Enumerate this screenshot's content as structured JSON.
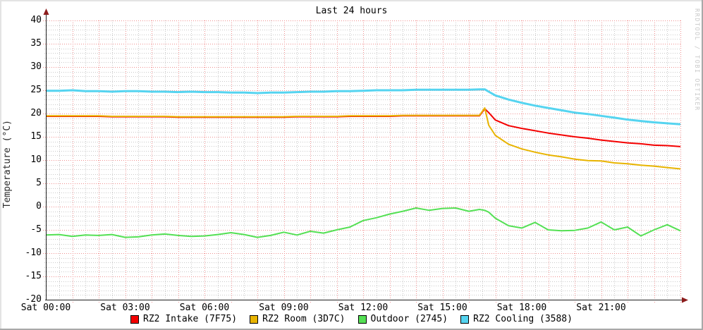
{
  "title": "Last 24 hours",
  "y_axis_label": "Temperature (°C)",
  "watermark": "RRDTOOL / TOBI OETIKER",
  "colors": {
    "background": "#ffffff",
    "axis": "#1f1f1f",
    "arrow": "#8c1c1c",
    "text": "#000000",
    "watermark_text": "#c9c9c9",
    "frame_light": "#e3e3e3",
    "frame_dark": "#a9a9a9"
  },
  "legend": [
    {
      "label": "RZ2 Intake (7F75)",
      "color": "#f40000",
      "name": "rz2-intake"
    },
    {
      "label": "RZ2 Room (3D7C)",
      "color": "#e8b400",
      "name": "rz2-room"
    },
    {
      "label": "Outdoor (2745)",
      "color": "#54e054",
      "name": "outdoor"
    },
    {
      "label": "RZ2 Cooling (3588)",
      "color": "#55d4f0",
      "name": "rz2-cooling"
    }
  ],
  "chart_data": {
    "type": "line",
    "title": "Last 24 hours",
    "xlabel": "",
    "ylabel": "Temperature (°C)",
    "x_unit": "hours since Sat 00:00",
    "xlim": [
      0,
      24
    ],
    "ylim": [
      -20,
      40
    ],
    "grid": {
      "major_color": "#f08f8f",
      "minor_color": "#c9c9c9",
      "x_major_step_hours": 1,
      "x_minor_step_hours": 0.5,
      "y_major_step": 5,
      "y_minor_step": 1,
      "style": "dotted"
    },
    "legend_position": "bottom-center",
    "x_ticks": [
      {
        "hour": 0,
        "label": "Sat 00:00"
      },
      {
        "hour": 3,
        "label": "Sat 03:00"
      },
      {
        "hour": 6,
        "label": "Sat 06:00"
      },
      {
        "hour": 9,
        "label": "Sat 09:00"
      },
      {
        "hour": 12,
        "label": "Sat 12:00"
      },
      {
        "hour": 15,
        "label": "Sat 15:00"
      },
      {
        "hour": 18,
        "label": "Sat 18:00"
      },
      {
        "hour": 21,
        "label": "Sat 21:00"
      }
    ],
    "y_ticks": [
      40,
      35,
      30,
      25,
      20,
      15,
      10,
      5,
      0,
      -5,
      -10,
      -15,
      -20
    ],
    "x": [
      0,
      0.5,
      1,
      1.5,
      2,
      2.5,
      3,
      3.5,
      4,
      4.5,
      5,
      5.5,
      6,
      6.5,
      7,
      7.5,
      8,
      8.5,
      9,
      9.5,
      10,
      10.5,
      11,
      11.5,
      12,
      12.5,
      13,
      13.5,
      14,
      14.5,
      15,
      15.5,
      16,
      16.4,
      16.6,
      16.75,
      17,
      17.5,
      18,
      18.5,
      19,
      19.5,
      20,
      20.5,
      21,
      21.5,
      22,
      22.5,
      23,
      23.5,
      24
    ],
    "series": [
      {
        "name": "RZ2 Intake (7F75)",
        "color": "#f40000",
        "width": 2,
        "values": [
          19.4,
          19.4,
          19.4,
          19.4,
          19.4,
          19.3,
          19.3,
          19.3,
          19.3,
          19.3,
          19.2,
          19.2,
          19.2,
          19.2,
          19.2,
          19.2,
          19.2,
          19.2,
          19.2,
          19.3,
          19.3,
          19.3,
          19.3,
          19.4,
          19.4,
          19.4,
          19.4,
          19.5,
          19.5,
          19.5,
          19.5,
          19.5,
          19.5,
          19.5,
          21.0,
          20.2,
          18.6,
          17.4,
          16.8,
          16.3,
          15.8,
          15.4,
          15.0,
          14.7,
          14.3,
          14.0,
          13.7,
          13.5,
          13.2,
          13.1,
          12.9
        ]
      },
      {
        "name": "RZ2 Room (3D7C)",
        "color": "#e8b400",
        "width": 2,
        "values": [
          19.5,
          19.5,
          19.5,
          19.5,
          19.5,
          19.4,
          19.4,
          19.4,
          19.4,
          19.4,
          19.3,
          19.3,
          19.3,
          19.3,
          19.3,
          19.3,
          19.3,
          19.3,
          19.3,
          19.4,
          19.4,
          19.4,
          19.4,
          19.5,
          19.5,
          19.5,
          19.5,
          19.6,
          19.6,
          19.6,
          19.6,
          19.6,
          19.6,
          19.6,
          21.2,
          17.5,
          15.3,
          13.4,
          12.4,
          11.7,
          11.1,
          10.7,
          10.2,
          9.9,
          9.8,
          9.4,
          9.2,
          8.9,
          8.7,
          8.4,
          8.1
        ]
      },
      {
        "name": "Outdoor (2745)",
        "color": "#54e054",
        "width": 2,
        "values": [
          -6.1,
          -6.0,
          -6.4,
          -6.1,
          -6.2,
          -6.0,
          -6.6,
          -6.5,
          -6.1,
          -5.9,
          -6.2,
          -6.4,
          -6.3,
          -6.0,
          -5.6,
          -6.0,
          -6.6,
          -6.2,
          -5.5,
          -6.1,
          -5.3,
          -5.7,
          -5.0,
          -4.4,
          -3.0,
          -2.4,
          -1.6,
          -1.0,
          -0.3,
          -0.8,
          -0.4,
          -0.3,
          -1.0,
          -0.6,
          -0.8,
          -1.2,
          -2.5,
          -4.1,
          -4.6,
          -3.4,
          -5.0,
          -5.2,
          -5.1,
          -4.6,
          -3.3,
          -5.0,
          -4.4,
          -6.3,
          -5.0,
          -3.9,
          -5.2
        ]
      },
      {
        "name": "RZ2 Cooling (3588)",
        "color": "#55d4f0",
        "width": 3,
        "values": [
          24.9,
          24.9,
          25.0,
          24.8,
          24.8,
          24.7,
          24.8,
          24.8,
          24.7,
          24.7,
          24.6,
          24.7,
          24.6,
          24.6,
          24.5,
          24.5,
          24.4,
          24.5,
          24.5,
          24.6,
          24.7,
          24.7,
          24.8,
          24.8,
          24.9,
          25.0,
          25.0,
          25.0,
          25.1,
          25.1,
          25.1,
          25.1,
          25.1,
          25.2,
          25.2,
          24.7,
          23.9,
          23.0,
          22.3,
          21.7,
          21.2,
          20.7,
          20.2,
          19.9,
          19.5,
          19.1,
          18.7,
          18.4,
          18.1,
          17.9,
          17.7
        ]
      }
    ]
  }
}
